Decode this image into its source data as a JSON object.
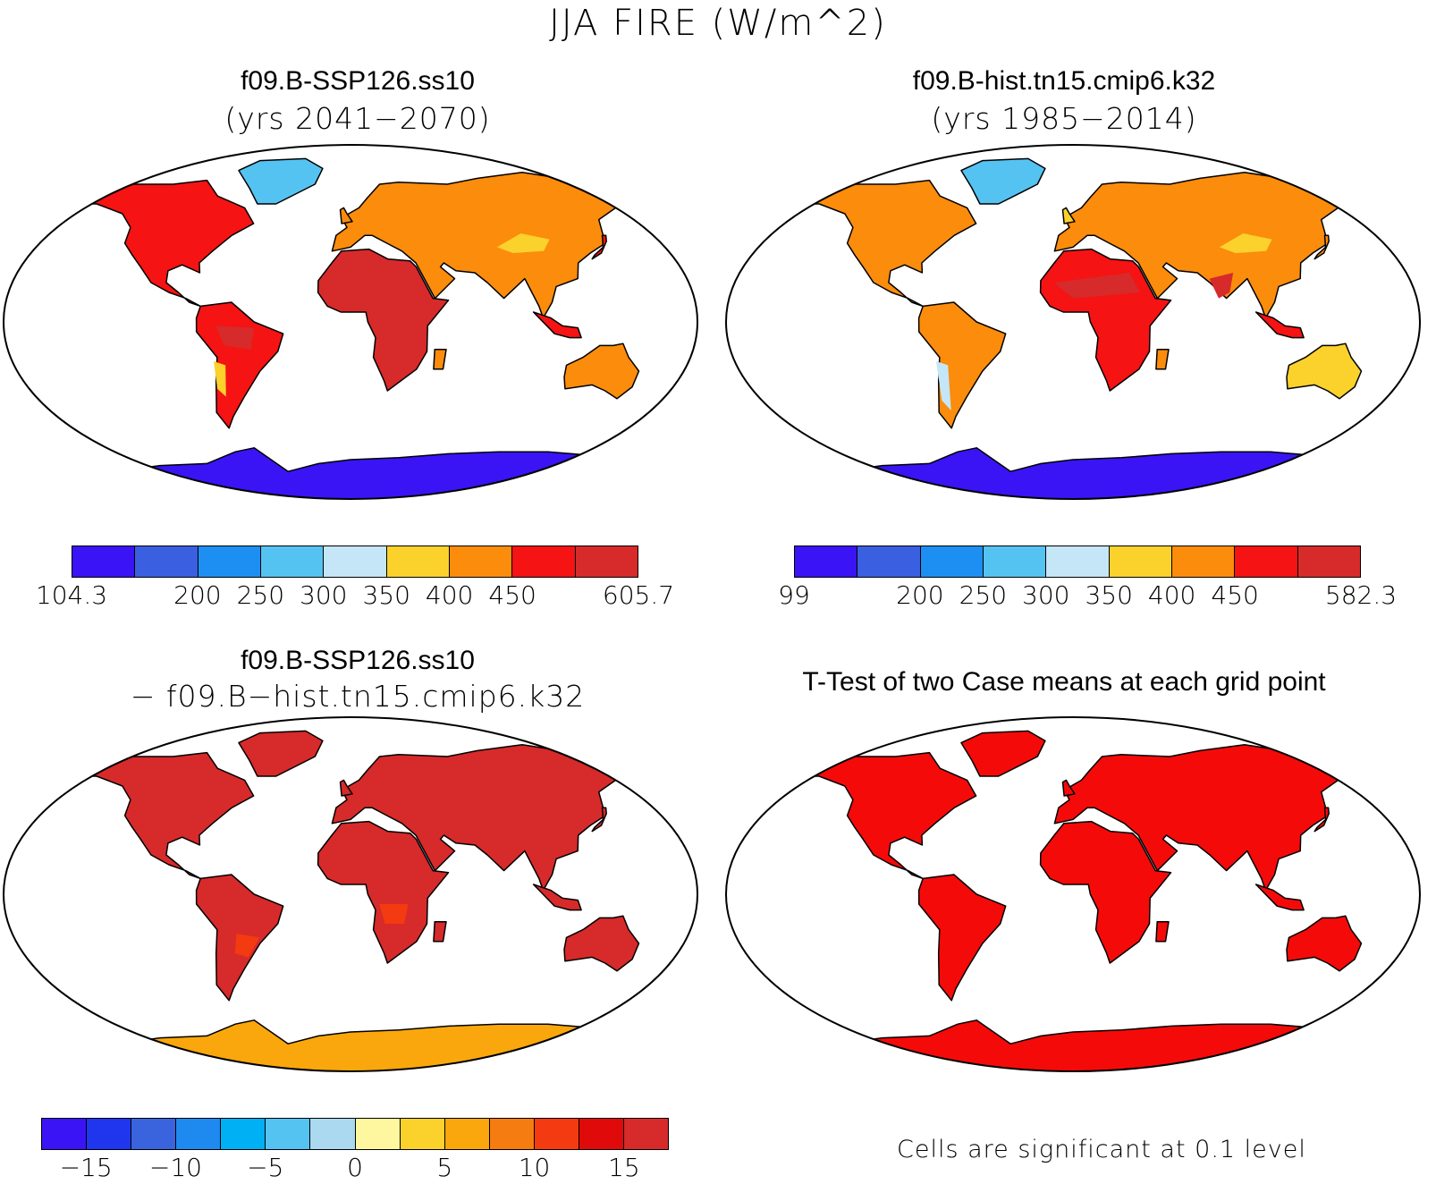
{
  "title": "JJA FIRE (W/m^2)",
  "panels": [
    {
      "id": "ssp126",
      "title": "f09.B-SSP126.ss10",
      "subtitle": "(yrs 2041−2070)",
      "colorbar": {
        "colors": [
          "#3a14f4",
          "#3a5fe0",
          "#1e8ff2",
          "#55c3f2",
          "#c4e6f7",
          "#fbd12c",
          "#fb8c0c",
          "#f51313",
          "#d72a2a"
        ],
        "ticks": [
          "104.3",
          "",
          "200",
          "250",
          "300",
          "350",
          "400",
          "450",
          "",
          "605.7"
        ]
      }
    },
    {
      "id": "hist",
      "title": "f09.B-hist.tn15.cmip6.k32",
      "subtitle": "(yrs 1985−2014)",
      "colorbar": {
        "colors": [
          "#3a14f4",
          "#3a5fe0",
          "#1e8ff2",
          "#55c3f2",
          "#c4e6f7",
          "#fbd12c",
          "#fb8c0c",
          "#f51313",
          "#d72a2a"
        ],
        "ticks": [
          "99",
          "",
          "200",
          "250",
          "300",
          "350",
          "400",
          "450",
          "",
          "582.3"
        ]
      }
    },
    {
      "id": "diff",
      "title": "f09.B-SSP126.ss10",
      "subtitle": "− f09.B−hist.tn15.cmip6.k32",
      "colorbar": {
        "colors": [
          "#3a14f4",
          "#1f36ee",
          "#3a64de",
          "#1e8af0",
          "#00b0f4",
          "#55c3f2",
          "#aad9f0",
          "#fff7a0",
          "#fbd12c",
          "#f9a70c",
          "#f57c10",
          "#f43a10",
          "#e00a0a",
          "#d72a2a"
        ],
        "ticks": [
          "",
          "−15",
          "",
          "−10",
          "",
          "−5",
          "",
          "0",
          "",
          "5",
          "",
          "10",
          "",
          "15",
          ""
        ]
      }
    },
    {
      "id": "ttest",
      "title": "T-Test of two Case means at each grid point",
      "note": "Cells are significant at 0.1 level"
    }
  ]
}
